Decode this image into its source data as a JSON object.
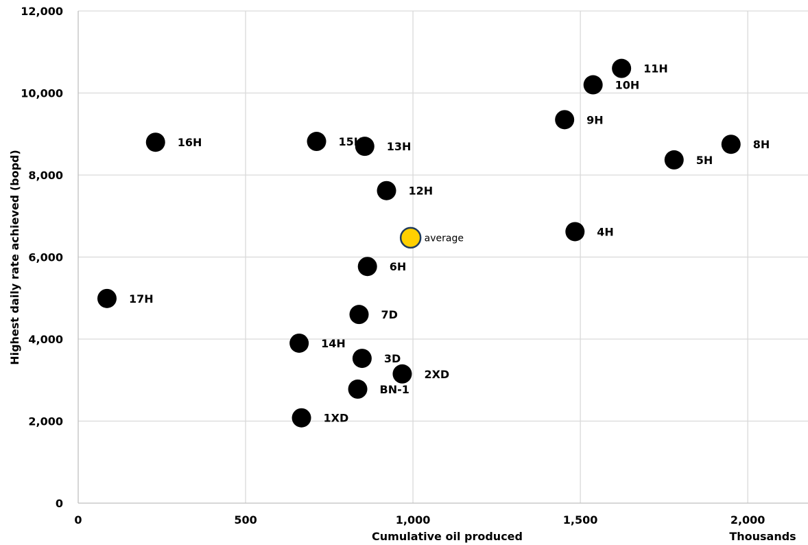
{
  "chart_data": {
    "type": "scatter",
    "xlabel": "Cumulative oil produced",
    "x_units_label": "Thousands",
    "ylabel": "Highest daily rate achieved (bopd)",
    "xlim": [
      0,
      2180
    ],
    "ylim": [
      0,
      12000
    ],
    "x_ticks": [
      0,
      500,
      1000,
      1500,
      2000
    ],
    "x_tick_labels": [
      "0",
      "500",
      "1,000",
      "1,500",
      "2,000"
    ],
    "y_ticks": [
      0,
      2000,
      4000,
      6000,
      8000,
      10000,
      12000
    ],
    "y_tick_labels": [
      "0",
      "2,000",
      "4,000",
      "6,000",
      "8,000",
      "10,000",
      "12,000"
    ],
    "grid": true,
    "legend": false,
    "point_color": "#000000",
    "average_color": "#ffd000",
    "average_outline": "#1f3b5c",
    "points": [
      {
        "label": "11H",
        "x": 1623,
        "y": 10600
      },
      {
        "label": "10H",
        "x": 1538,
        "y": 10200
      },
      {
        "label": "9H",
        "x": 1453,
        "y": 9350
      },
      {
        "label": "8H",
        "x": 1950,
        "y": 8750
      },
      {
        "label": "5H",
        "x": 1780,
        "y": 8370
      },
      {
        "label": "16H",
        "x": 231,
        "y": 8800
      },
      {
        "label": "15H",
        "x": 712,
        "y": 8820
      },
      {
        "label": "13H",
        "x": 856,
        "y": 8700
      },
      {
        "label": "12H",
        "x": 921,
        "y": 7620
      },
      {
        "label": "4H",
        "x": 1484,
        "y": 6620
      },
      {
        "label": "6H",
        "x": 864,
        "y": 5770
      },
      {
        "label": "17H",
        "x": 86,
        "y": 4990
      },
      {
        "label": "7D",
        "x": 839,
        "y": 4600
      },
      {
        "label": "14H",
        "x": 660,
        "y": 3900
      },
      {
        "label": "3D",
        "x": 848,
        "y": 3530
      },
      {
        "label": "2XD",
        "x": 968,
        "y": 3150
      },
      {
        "label": "BN-1",
        "x": 835,
        "y": 2780
      },
      {
        "label": "1XD",
        "x": 667,
        "y": 2080
      }
    ],
    "average": {
      "label": "average",
      "x": 993,
      "y": 6470
    }
  }
}
